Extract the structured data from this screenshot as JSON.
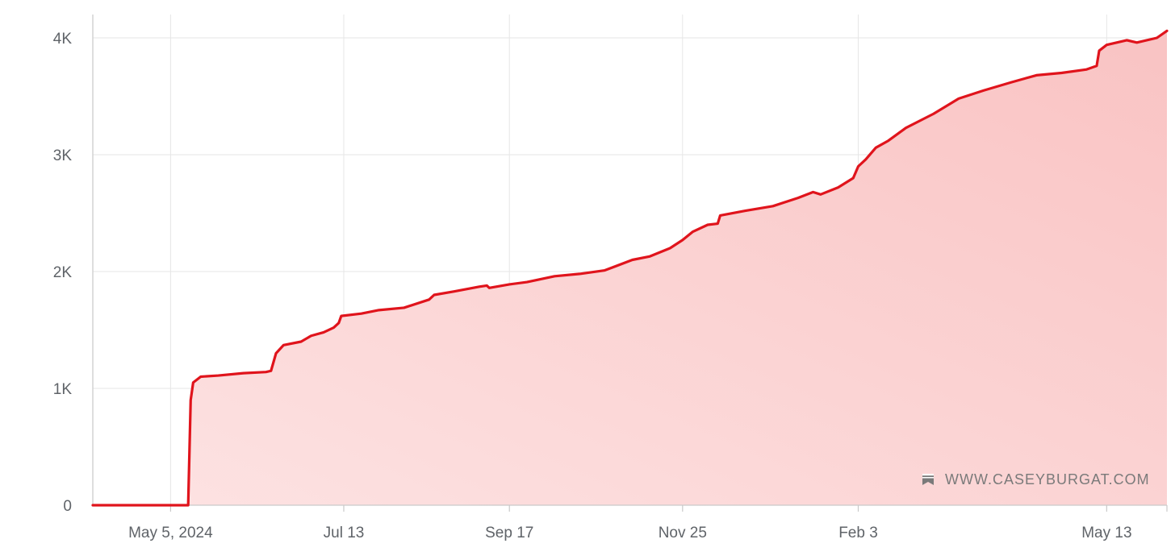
{
  "chart_data": {
    "type": "area",
    "title": "",
    "xlabel": "",
    "ylabel": "",
    "x_axis_type": "date",
    "xlim": [
      "2024-04-04",
      "2025-06-06"
    ],
    "ylim": [
      0,
      4200
    ],
    "grid": true,
    "legend": "none",
    "x_ticks": [
      {
        "date": "2024-05-05",
        "label": "May 5, 2024"
      },
      {
        "date": "2024-07-13",
        "label": "Jul 13"
      },
      {
        "date": "2024-09-17",
        "label": "Sep 17"
      },
      {
        "date": "2024-11-25",
        "label": "Nov 25"
      },
      {
        "date": "2025-02-03",
        "label": "Feb 3"
      },
      {
        "date": "2025-05-13",
        "label": "May 13"
      }
    ],
    "y_ticks": [
      {
        "value": 0,
        "label": "0"
      },
      {
        "value": 1000,
        "label": "1K"
      },
      {
        "value": 2000,
        "label": "2K"
      },
      {
        "value": 3000,
        "label": "3K"
      },
      {
        "value": 4000,
        "label": "4K"
      }
    ],
    "series": [
      {
        "color": "#e0141c",
        "fill_color": "#f9c3c3",
        "points": [
          [
            "2024-04-04",
            0
          ],
          [
            "2024-05-12",
            0
          ],
          [
            "2024-05-13",
            900
          ],
          [
            "2024-05-14",
            1050
          ],
          [
            "2024-05-17",
            1100
          ],
          [
            "2024-05-24",
            1110
          ],
          [
            "2024-06-03",
            1130
          ],
          [
            "2024-06-12",
            1140
          ],
          [
            "2024-06-14",
            1150
          ],
          [
            "2024-06-16",
            1300
          ],
          [
            "2024-06-19",
            1370
          ],
          [
            "2024-06-26",
            1400
          ],
          [
            "2024-06-30",
            1450
          ],
          [
            "2024-07-05",
            1480
          ],
          [
            "2024-07-09",
            1520
          ],
          [
            "2024-07-11",
            1560
          ],
          [
            "2024-07-12",
            1620
          ],
          [
            "2024-07-20",
            1640
          ],
          [
            "2024-07-27",
            1670
          ],
          [
            "2024-08-06",
            1690
          ],
          [
            "2024-08-16",
            1760
          ],
          [
            "2024-08-18",
            1800
          ],
          [
            "2024-08-26",
            1830
          ],
          [
            "2024-09-05",
            1870
          ],
          [
            "2024-09-08",
            1880
          ],
          [
            "2024-09-09",
            1860
          ],
          [
            "2024-09-17",
            1890
          ],
          [
            "2024-09-24",
            1910
          ],
          [
            "2024-10-05",
            1960
          ],
          [
            "2024-10-15",
            1980
          ],
          [
            "2024-10-25",
            2010
          ],
          [
            "2024-11-05",
            2100
          ],
          [
            "2024-11-12",
            2130
          ],
          [
            "2024-11-20",
            2200
          ],
          [
            "2024-11-25",
            2270
          ],
          [
            "2024-11-29",
            2340
          ],
          [
            "2024-12-05",
            2400
          ],
          [
            "2024-12-09",
            2410
          ],
          [
            "2024-12-10",
            2480
          ],
          [
            "2024-12-20",
            2520
          ],
          [
            "2024-12-31",
            2560
          ],
          [
            "2025-01-10",
            2630
          ],
          [
            "2025-01-16",
            2680
          ],
          [
            "2025-01-19",
            2660
          ],
          [
            "2025-01-26",
            2720
          ],
          [
            "2025-02-01",
            2800
          ],
          [
            "2025-02-03",
            2900
          ],
          [
            "2025-02-06",
            2960
          ],
          [
            "2025-02-10",
            3060
          ],
          [
            "2025-02-15",
            3120
          ],
          [
            "2025-02-22",
            3230
          ],
          [
            "2025-03-05",
            3350
          ],
          [
            "2025-03-15",
            3480
          ],
          [
            "2025-03-25",
            3550
          ],
          [
            "2025-04-05",
            3620
          ],
          [
            "2025-04-15",
            3680
          ],
          [
            "2025-04-25",
            3700
          ],
          [
            "2025-05-05",
            3730
          ],
          [
            "2025-05-09",
            3760
          ],
          [
            "2025-05-10",
            3890
          ],
          [
            "2025-05-13",
            3940
          ],
          [
            "2025-05-21",
            3980
          ],
          [
            "2025-05-25",
            3960
          ],
          [
            "2025-06-02",
            4000
          ],
          [
            "2025-06-06",
            4060
          ]
        ]
      }
    ]
  },
  "watermark": {
    "text": "WWW.CASEYBURGAT.COM",
    "icon": "bookmark-icon"
  }
}
